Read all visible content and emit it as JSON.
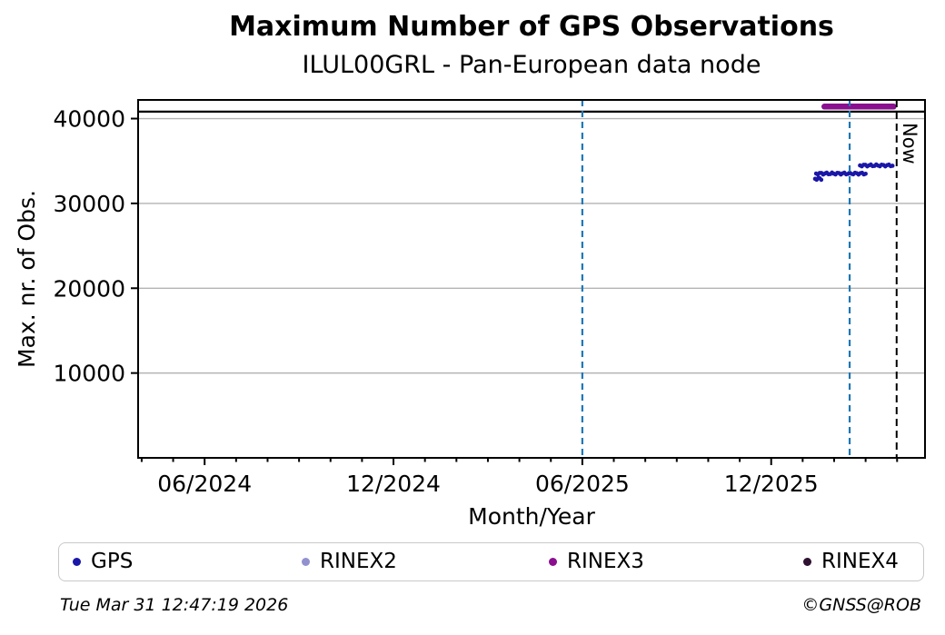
{
  "title": "Maximum Number of GPS Observations",
  "subtitle": "ILUL00GRL - Pan-European data node",
  "footer": {
    "timestamp": "Tue Mar 31 12:47:19 2026",
    "copyright": "©GNSS@ROB"
  },
  "legend": {
    "items": [
      {
        "label": "GPS",
        "color": "#1a17a8",
        "icon": "dot-marker"
      },
      {
        "label": "RINEX2",
        "color": "#9191d0",
        "icon": "dot-marker"
      },
      {
        "label": "RINEX3",
        "color": "#8a0f8f",
        "icon": "dot-marker"
      },
      {
        "label": "RINEX4",
        "color": "#2e1130",
        "icon": "dot-marker"
      }
    ]
  },
  "chart_data": {
    "type": "scatter",
    "title": "Maximum Number of GPS Observations",
    "subtitle": "ILUL00GRL - Pan-European data node",
    "xlabel": "Month/Year",
    "ylabel": "Max. nr. of Obs.",
    "x_domain": [
      "2024-03-28",
      "2026-04-28"
    ],
    "ylim": [
      0,
      42200
    ],
    "y_ticks": [
      10000,
      20000,
      30000,
      40000
    ],
    "x_ticks_major": [
      {
        "label": "06/2024",
        "date": "2024-06-01"
      },
      {
        "label": "12/2024",
        "date": "2024-12-01"
      },
      {
        "label": "06/2025",
        "date": "2025-06-01"
      },
      {
        "label": "12/2025",
        "date": "2025-12-01"
      }
    ],
    "x_minor_ticks": "monthly",
    "grid": {
      "axis": "y",
      "color": "#b4b4b4",
      "on": true
    },
    "legend_position": "bottom",
    "series": [
      {
        "name": "GPS",
        "color": "#1a17a8",
        "draw": "dots",
        "segments": [
          {
            "start": "2026-01-13",
            "end": "2026-01-19",
            "value": 32900
          },
          {
            "start": "2026-01-14",
            "end": "2026-03-01",
            "value": 33520
          },
          {
            "start": "2026-02-26",
            "end": "2026-03-27",
            "value": 34480
          }
        ]
      },
      {
        "name": "RINEX2",
        "color": "#9191d0",
        "draw": "dots",
        "segments": []
      },
      {
        "name": "RINEX3",
        "color": "#8a0f8f",
        "draw": "thick-line",
        "segments": [
          {
            "start": "2026-01-22",
            "end": "2026-03-28",
            "value": 41420
          }
        ]
      },
      {
        "name": "RINEX4",
        "color": "#2e1130",
        "draw": "dots",
        "segments": []
      }
    ],
    "reference_lines": {
      "hline": {
        "value": 40820,
        "color": "#000000",
        "style": "solid"
      },
      "vlines": [
        {
          "date": "2025-06-01",
          "color": "#1f77b4",
          "style": "dashed"
        },
        {
          "date": "2026-02-16",
          "color": "#1f77b4",
          "style": "dashed"
        }
      ],
      "now": {
        "date": "2026-03-31",
        "label": "Now",
        "color": "#000000",
        "style": "dashed"
      }
    }
  }
}
